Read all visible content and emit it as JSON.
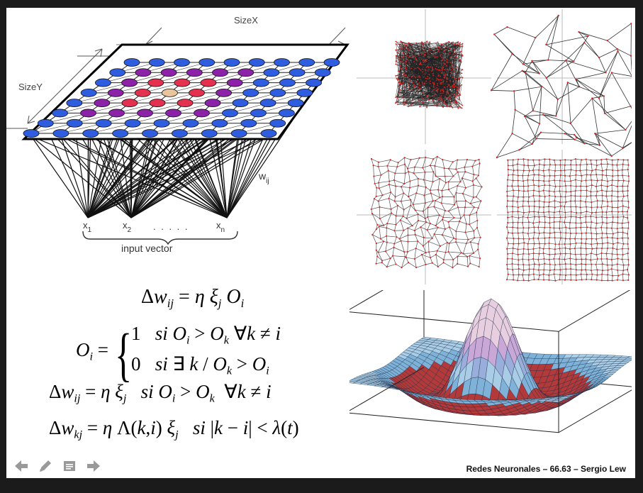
{
  "slide": {
    "diagram": {
      "size_x": "SizeX",
      "size_y": "SizeY",
      "weight_label": "w",
      "weight_sub": "ij",
      "inputs": [
        {
          "base": "x",
          "sub": "1"
        },
        {
          "base": "x",
          "sub": "2"
        },
        {
          "base": "x",
          "sub": "n"
        }
      ],
      "dots": ". . . . .",
      "input_caption": "input vector",
      "node_colors": {
        "blue": "#2f5de0",
        "purple": "#8b22a8",
        "red": "#e3314f",
        "winner": "#e8c59a"
      }
    },
    "equations": {
      "eq1": "Δw_ij = η ξ_j O_i",
      "eq2": "O_i = {1 si O_i > O_k ∀k ≠ i ; 0 si ∃ k / O_k > O_i}",
      "eq3": "Δw_ij = η ξ_j  si O_i > O_k  ∀k ≠ i",
      "eq4": "Δw_kj = η Λ(k,i) ξ_j  si |k − i| < λ(t)"
    },
    "footer": "Redes Neuronales – 66.63 – Sergio Lew"
  },
  "toolbar": {
    "icons": [
      "arrow-left-icon",
      "pen-icon",
      "notes-icon",
      "arrow-right-icon"
    ]
  }
}
